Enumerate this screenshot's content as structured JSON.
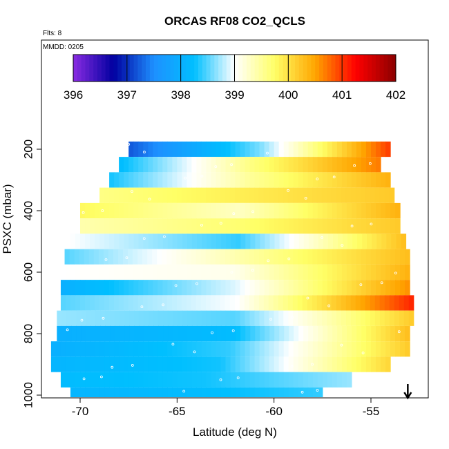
{
  "chart_data": {
    "type": "heatmap",
    "title": "ORCAS RF08 CO2_QCLS",
    "annotations": {
      "flights": "Flts: 8",
      "date": "MMDD: 0205"
    },
    "xlabel": "Latitude (deg N)",
    "ylabel": "PSXC (mbar)",
    "xlim": [
      -72,
      -52
    ],
    "ylim": [
      1010,
      125
    ],
    "x_ticks": [
      -70,
      -65,
      -60,
      -55
    ],
    "y_ticks": [
      200,
      400,
      600,
      800,
      1000
    ],
    "colorbar": {
      "min": 396,
      "max": 402,
      "ticks": [
        396,
        397,
        398,
        399,
        400,
        401,
        402
      ],
      "stops": [
        "#8a2be2",
        "#0000a0",
        "#1e90ff",
        "#00bfff",
        "#ffffff",
        "#ffff66",
        "#ffa500",
        "#ff0000",
        "#8b0000"
      ]
    },
    "arrow": {
      "x": -53.1,
      "direction": "down"
    },
    "rows": [
      {
        "p": 200,
        "x0": -67.5,
        "x1": -54.0,
        "v0": 397.2,
        "vm": 398.6,
        "v1": 401.0
      },
      {
        "p": 250,
        "x0": -68.0,
        "x1": -54.5,
        "v0": 398.2,
        "vm": 399.6,
        "v1": 400.7
      },
      {
        "p": 300,
        "x0": -68.5,
        "x1": -54.0,
        "v0": 398.3,
        "vm": 399.5,
        "v1": 400.4
      },
      {
        "p": 350,
        "x0": -69.0,
        "x1": -53.8,
        "v0": 399.6,
        "vm": 399.9,
        "v1": 400.2
      },
      {
        "p": 400,
        "x0": -70.0,
        "x1": -53.5,
        "v0": 399.8,
        "vm": 399.3,
        "v1": 400.4
      },
      {
        "p": 450,
        "x0": -70.0,
        "x1": -53.5,
        "v0": 399.4,
        "vm": 399.7,
        "v1": 400.2
      },
      {
        "p": 500,
        "x0": -70.5,
        "x1": -53.2,
        "v0": 399.0,
        "vm": 398.4,
        "v1": 400.3
      },
      {
        "p": 550,
        "x0": -70.8,
        "x1": -53.0,
        "v0": 398.5,
        "vm": 399.4,
        "v1": 400.3
      },
      {
        "p": 600,
        "x0": -71.0,
        "x1": -53.0,
        "v0": 399.0,
        "vm": 399.1,
        "v1": 400.4
      },
      {
        "p": 650,
        "x0": -71.0,
        "x1": -53.0,
        "v0": 398.0,
        "vm": 398.9,
        "v1": 400.6
      },
      {
        "p": 700,
        "x0": -71.0,
        "x1": -52.8,
        "v0": 398.5,
        "vm": 399.0,
        "v1": 401.1
      },
      {
        "p": 750,
        "x0": -71.2,
        "x1": -52.8,
        "v0": 398.7,
        "vm": 398.5,
        "v1": 400.2
      },
      {
        "p": 800,
        "x0": -71.2,
        "x1": -53.0,
        "v0": 398.0,
        "vm": 398.2,
        "v1": 400.3
      },
      {
        "p": 850,
        "x0": -71.5,
        "x1": -53.0,
        "v0": 398.0,
        "vm": 398.4,
        "v1": 400.2
      },
      {
        "p": 900,
        "x0": -71.5,
        "x1": -54.0,
        "v0": 398.1,
        "vm": 398.3,
        "v1": 400.1
      },
      {
        "p": 950,
        "x0": -71.0,
        "x1": -56.0,
        "v0": 398.2,
        "vm": 398.3,
        "v1": 398.7
      },
      {
        "p": 1000,
        "x0": -70.5,
        "x1": -57.5,
        "v0": 398.1,
        "vm": 398.2,
        "v1": 398.4
      }
    ]
  }
}
